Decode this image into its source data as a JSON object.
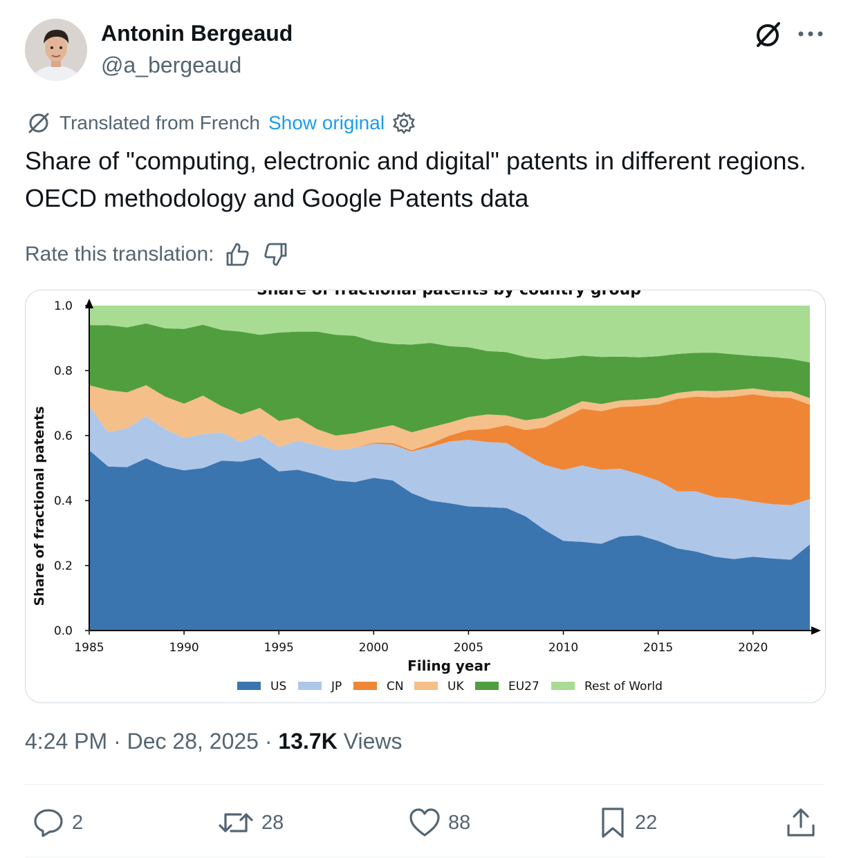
{
  "author": {
    "display_name": "Antonin Bergeaud",
    "handle": "@a_bergeaud"
  },
  "translation": {
    "label": "Translated from French",
    "show_original": "Show original"
  },
  "tweet": {
    "text": "Share of \"computing, electronic and digital\" patents in different regions. OECD methodology and Google Patents data"
  },
  "rate": {
    "label": "Rate this translation:"
  },
  "meta": {
    "time": "4:24 PM",
    "sep1": " · ",
    "date": "Dec 28, 2025",
    "sep2": " · ",
    "views_count": "13.7K",
    "views_label": " Views"
  },
  "actions": {
    "replies": "2",
    "reposts": "28",
    "likes": "88",
    "bookmarks": "22"
  },
  "colors": {
    "accent": "#1d9bf0",
    "muted": "#536471"
  },
  "chart_data": {
    "type": "area",
    "title": "Share of fractional patents by country group",
    "xlabel": "Filing year",
    "ylabel": "Share of fractional patents",
    "xlim": [
      1985,
      2023
    ],
    "ylim": [
      0,
      1.0
    ],
    "x_ticks": [
      "1985",
      "1990",
      "1995",
      "2000",
      "2005",
      "2010",
      "2015",
      "2020"
    ],
    "y_ticks": [
      "0.0",
      "0.2",
      "0.4",
      "0.6",
      "0.8",
      "1.0"
    ],
    "legend_position": "bottom",
    "x": [
      1985,
      1986,
      1987,
      1988,
      1989,
      1990,
      1991,
      1992,
      1993,
      1994,
      1995,
      1996,
      1997,
      1998,
      1999,
      2000,
      2001,
      2002,
      2003,
      2004,
      2005,
      2006,
      2007,
      2008,
      2009,
      2010,
      2011,
      2012,
      2013,
      2014,
      2015,
      2016,
      2017,
      2018,
      2019,
      2020,
      2021,
      2022,
      2023
    ],
    "series": [
      {
        "name": "US",
        "color": "#3b75af",
        "values": [
          0.555,
          0.505,
          0.503,
          0.53,
          0.505,
          0.493,
          0.5,
          0.523,
          0.52,
          0.532,
          0.49,
          0.495,
          0.48,
          0.462,
          0.457,
          0.47,
          0.462,
          0.423,
          0.4,
          0.392,
          0.382,
          0.38,
          0.377,
          0.352,
          0.31,
          0.276,
          0.273,
          0.267,
          0.29,
          0.293,
          0.276,
          0.253,
          0.243,
          0.227,
          0.22,
          0.227,
          0.222,
          0.218,
          0.265
        ]
      },
      {
        "name": "JP",
        "color": "#aec7e8",
        "values": [
          0.135,
          0.105,
          0.12,
          0.13,
          0.115,
          0.1,
          0.105,
          0.087,
          0.06,
          0.073,
          0.075,
          0.09,
          0.09,
          0.093,
          0.105,
          0.105,
          0.11,
          0.128,
          0.165,
          0.19,
          0.205,
          0.2,
          0.2,
          0.19,
          0.2,
          0.218,
          0.235,
          0.228,
          0.208,
          0.188,
          0.185,
          0.175,
          0.185,
          0.183,
          0.187,
          0.17,
          0.167,
          0.168,
          0.14
        ]
      },
      {
        "name": "CN",
        "color": "#ef8636",
        "values": [
          0.0,
          0.0,
          0.0,
          0.0,
          0.0,
          0.0,
          0.0,
          0.0,
          0.0,
          0.0,
          0.0,
          0.0,
          0.0,
          0.0,
          0.0,
          0.003,
          0.005,
          0.004,
          0.01,
          0.018,
          0.03,
          0.04,
          0.055,
          0.075,
          0.115,
          0.16,
          0.175,
          0.18,
          0.19,
          0.21,
          0.235,
          0.285,
          0.292,
          0.307,
          0.313,
          0.33,
          0.33,
          0.33,
          0.29
        ]
      },
      {
        "name": "UK",
        "color": "#f5bf89",
        "values": [
          0.065,
          0.13,
          0.11,
          0.095,
          0.1,
          0.105,
          0.118,
          0.08,
          0.085,
          0.08,
          0.08,
          0.07,
          0.05,
          0.045,
          0.045,
          0.042,
          0.055,
          0.055,
          0.05,
          0.04,
          0.04,
          0.045,
          0.03,
          0.03,
          0.03,
          0.025,
          0.023,
          0.022,
          0.02,
          0.02,
          0.02,
          0.018,
          0.018,
          0.02,
          0.02,
          0.018,
          0.018,
          0.02,
          0.02
        ]
      },
      {
        "name": "EU27",
        "color": "#519e3e",
        "values": [
          0.185,
          0.2,
          0.2,
          0.19,
          0.21,
          0.23,
          0.218,
          0.235,
          0.255,
          0.225,
          0.272,
          0.265,
          0.3,
          0.31,
          0.3,
          0.27,
          0.25,
          0.27,
          0.26,
          0.235,
          0.215,
          0.195,
          0.195,
          0.195,
          0.18,
          0.16,
          0.14,
          0.145,
          0.135,
          0.13,
          0.128,
          0.12,
          0.117,
          0.118,
          0.11,
          0.1,
          0.105,
          0.1,
          0.11
        ]
      },
      {
        "name": "Rest of World",
        "color": "#a8dc93",
        "values": [
          0.06,
          0.06,
          0.067,
          0.055,
          0.07,
          0.072,
          0.059,
          0.075,
          0.08,
          0.09,
          0.083,
          0.08,
          0.08,
          0.09,
          0.093,
          0.11,
          0.118,
          0.12,
          0.115,
          0.125,
          0.128,
          0.14,
          0.143,
          0.158,
          0.165,
          0.161,
          0.154,
          0.158,
          0.157,
          0.159,
          0.156,
          0.149,
          0.145,
          0.145,
          0.15,
          0.155,
          0.158,
          0.164,
          0.175
        ]
      }
    ]
  }
}
